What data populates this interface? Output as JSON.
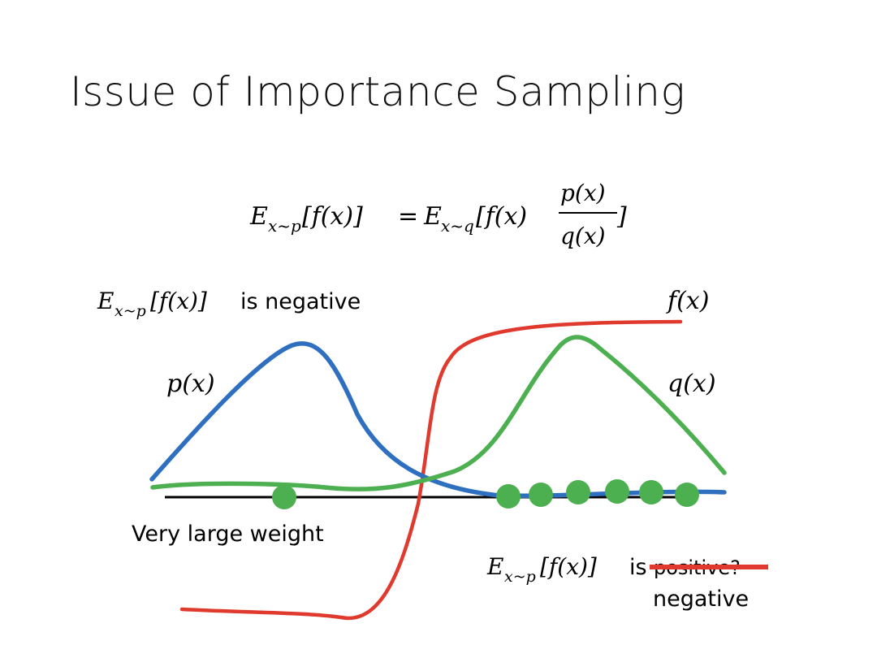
{
  "slide": {
    "title": "Issue of Importance Sampling"
  },
  "equation": {
    "lhs": "E",
    "lhs_sub": "x~p",
    "lhs_arg": "[f(x)]",
    "equals": "=",
    "rhs": "E",
    "rhs_sub": "x~q",
    "rhs_arg": "[f(x)",
    "numerator": "p(x)",
    "denominator": "q(x)",
    "close": "]"
  },
  "labels": {
    "top_expectation_prefix": "E",
    "top_expectation_sub": "x~p",
    "top_expectation_arg": "[f(x)]",
    "top_expectation_suffix": " is negative",
    "fx": "f(x)",
    "px": "p(x)",
    "qx": "q(x)",
    "very_large_weight": "Very large weight",
    "bottom_expectation_prefix": "E",
    "bottom_expectation_sub": "x~p",
    "bottom_expectation_arg": "[f(x)]",
    "bottom_is": "is",
    "struck_word": "positive?",
    "correction": "negative"
  },
  "colors": {
    "p_curve": "#2e6fc0",
    "q_curve": "#4caf50",
    "f_curve": "#e03a2e",
    "samples": "#4caf50",
    "axis": "#000000",
    "strike": "#e03a2e"
  },
  "samples": {
    "count_left": 1,
    "count_right": 6
  }
}
